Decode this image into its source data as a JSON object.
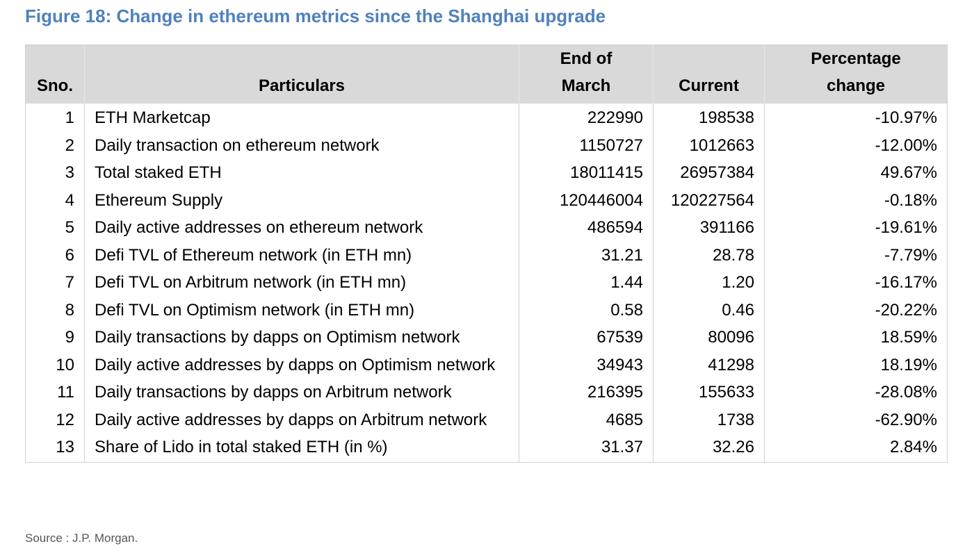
{
  "title": "Figure 18: Change in ethereum metrics since the Shanghai upgrade",
  "colors": {
    "title": "#4f81bd",
    "header_bg": "#d9d9d9",
    "border": "#cfcfcf"
  },
  "table": {
    "headers": [
      "Sno.",
      "Particulars",
      "End of March",
      "Current",
      "Percentage change"
    ],
    "rows": [
      {
        "sno": "1",
        "particulars": "ETH Marketcap",
        "end_of_march": "222990",
        "current": "198538",
        "change": "-10.97%"
      },
      {
        "sno": "2",
        "particulars": "Daily transaction on ethereum network",
        "end_of_march": "1150727",
        "current": "1012663",
        "change": "-12.00%"
      },
      {
        "sno": "3",
        "particulars": "Total staked ETH",
        "end_of_march": "18011415",
        "current": "26957384",
        "change": "49.67%"
      },
      {
        "sno": "4",
        "particulars": "Ethereum Supply",
        "end_of_march": "120446004",
        "current": "120227564",
        "change": "-0.18%"
      },
      {
        "sno": "5",
        "particulars": "Daily active addresses on ethereum network",
        "end_of_march": "486594",
        "current": "391166",
        "change": "-19.61%"
      },
      {
        "sno": "6",
        "particulars": "Defi TVL of Ethereum network (in ETH mn)",
        "end_of_march": "31.21",
        "current": "28.78",
        "change": "-7.79%"
      },
      {
        "sno": "7",
        "particulars": "Defi TVL on Arbitrum network (in ETH mn)",
        "end_of_march": "1.44",
        "current": "1.20",
        "change": "-16.17%"
      },
      {
        "sno": "8",
        "particulars": "Defi TVL on Optimism network (in ETH mn)",
        "end_of_march": "0.58",
        "current": "0.46",
        "change": "-20.22%"
      },
      {
        "sno": "9",
        "particulars": "Daily transactions by dapps on Optimism network",
        "end_of_march": "67539",
        "current": "80096",
        "change": "18.59%"
      },
      {
        "sno": "10",
        "particulars": "Daily active addresses by dapps on Optimism network",
        "end_of_march": "34943",
        "current": "41298",
        "change": "18.19%"
      },
      {
        "sno": "11",
        "particulars": "Daily transactions by dapps on Arbitrum network",
        "end_of_march": "216395",
        "current": "155633",
        "change": "-28.08%"
      },
      {
        "sno": "12",
        "particulars": "Daily active addresses by dapps on Arbitrum network",
        "end_of_march": "4685",
        "current": "1738",
        "change": "-62.90%"
      },
      {
        "sno": "13",
        "particulars": "Share of Lido in total staked ETH (in %)",
        "end_of_march": "31.37",
        "current": "32.26",
        "change": "2.84%"
      }
    ]
  },
  "source": "Source : J.P. Morgan."
}
